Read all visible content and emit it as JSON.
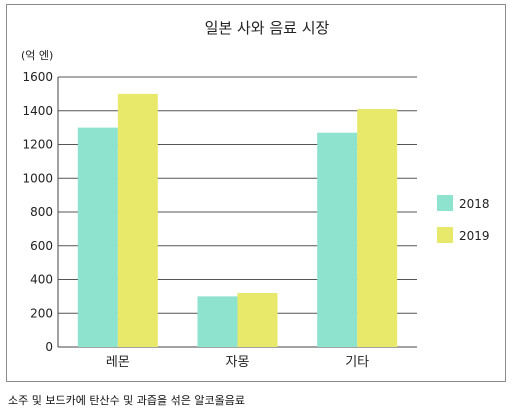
{
  "chart_data": {
    "type": "bar",
    "title": "일본 사와 음료 시장",
    "unit_label": "(억 엔)",
    "categories": [
      "레몬",
      "자몽",
      "기타"
    ],
    "series": [
      {
        "name": "2018",
        "values": [
          1300,
          300,
          1270
        ],
        "color": "#8ee3cf"
      },
      {
        "name": "2019",
        "values": [
          1500,
          320,
          1410
        ],
        "color": "#e8e86a"
      }
    ],
    "ylim": [
      0,
      1600
    ],
    "yticks": [
      0,
      200,
      400,
      600,
      800,
      1000,
      1200,
      1400,
      1600
    ],
    "grid": true,
    "legend_position": "right"
  },
  "footnote": "소주 및 보드카에 탄산수 및 과즙을 섞은 알코올음료"
}
